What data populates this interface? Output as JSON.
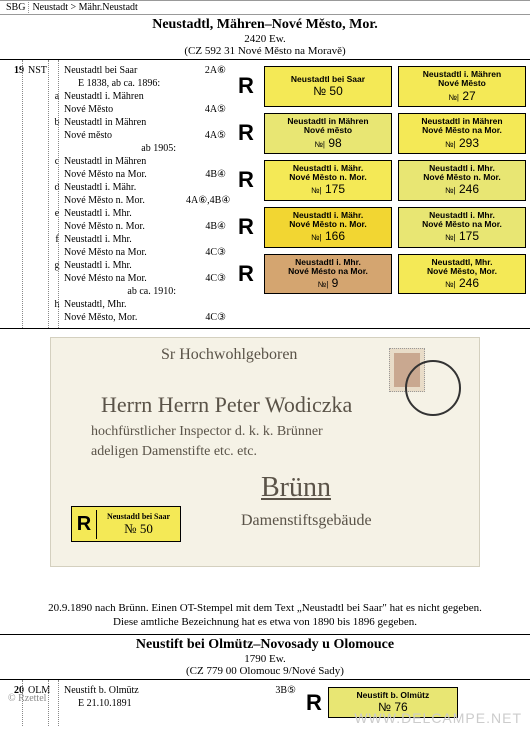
{
  "header": {
    "sbg": "SBG",
    "path": "Neustadt  >  Mähr.Neustadt"
  },
  "section1": {
    "title": "Neustadtl, Mähren–Nové Město, Mor.",
    "pop": "2420 Ew.",
    "loc": "(CZ 592 31 Nové Město na Moravě)",
    "num": "19",
    "prefix": "NST",
    "main": "Neustadtl bei Saar",
    "main_code": "2A⑥",
    "main_sub": "E 1838,   ab ca. 1896:",
    "items": [
      {
        "k": "a",
        "l1": "Neustadtl i. Mähren",
        "l2": "Nové Město",
        "c": "4A⑤"
      },
      {
        "k": "b",
        "l1": "Neustadtl in Mähren",
        "l2": "Nové město",
        "c": "4A⑤"
      },
      {
        "k": "",
        "l1": "",
        "l2": "ab 1905:",
        "c": ""
      },
      {
        "k": "c",
        "l1": "Neustadtl in Mähren",
        "l2": "Nové Město na Mor.",
        "c": "4B④"
      },
      {
        "k": "d",
        "l1": "Neustadtl i. Mähr.",
        "l2": "Nové Město n. Mor.",
        "c": "4A⑥,4B④"
      },
      {
        "k": "e",
        "l1": "Neustadtl i. Mhr.",
        "l2": "Nové Město n. Mor.",
        "c": "4B④"
      },
      {
        "k": "f",
        "l1": "Neustadtl i. Mhr.",
        "l2": "Nové Město na Mor.",
        "c": "4C③"
      },
      {
        "k": "g",
        "l1": "Neustadtl i. Mhr.",
        "l2": "Nové Mésto na Mor.",
        "c": "4C③"
      },
      {
        "k": "",
        "l1": "",
        "l2": "ab ca. 1910:",
        "c": ""
      },
      {
        "k": "h",
        "l1": "Neustadtl, Mhr.",
        "l2": "Nové Město, Mor.",
        "c": "4C③"
      }
    ]
  },
  "labels": [
    {
      "bg": "#f4e956",
      "top": "Neustadtl bei Saar",
      "num": "№ 50",
      "style": "single"
    },
    {
      "bg": "#f4e956",
      "top": "Neustadtl i. Mähren\nNové Mĕsto",
      "num": "27",
      "style": "dbl"
    },
    {
      "bg": "#e8e673",
      "top": "Neustadtl in Mähren\nNové mĕsto",
      "num": "98",
      "style": "dbl"
    },
    {
      "bg": "#f4e956",
      "top": "Neustadtl in Mähren\nNové Mĕsto na Mor.",
      "num": "293",
      "style": "dbl"
    },
    {
      "bg": "#f4e956",
      "top": "Neustadtl i. Mähr.\nNové Mĕsto n. Mor.",
      "num": "175",
      "style": "dbl"
    },
    {
      "bg": "#e8e673",
      "top": "Neustadtl i. Mhr.\nNové Mĕsto n. Mor.",
      "num": "246",
      "style": "dbl"
    },
    {
      "bg": "#f2d632",
      "top": "Neustadtl i. Mähr.\nNové Mĕsto n. Mor.",
      "num": "166",
      "style": "dbl"
    },
    {
      "bg": "#e8e673",
      "top": "Neustadtl i. Mhr.\nNové Mĕsto na Mor.",
      "num": "175",
      "style": "dbl"
    },
    {
      "bg": "#d4a570",
      "top": "Neustadtl i. Mhr.\nNové Mésto na Mor.",
      "num": "9",
      "style": "dbl"
    },
    {
      "bg": "#f4e956",
      "top": "Neustadtl, Mhr.\nNové Mĕsto, Mor.",
      "num": "246",
      "style": "dbl"
    }
  ],
  "cover": {
    "line1": "Sr Hochwohlgeboren",
    "line2": "Herrn Herrn Peter Wodiczka",
    "line3": "hochfürstlicher Inspector d. k. k. Brünner",
    "line4": "adeligen Damenstifte etc. etc.",
    "dest": "Brünn",
    "dest2": "Damenstiftsgebäude",
    "label_top": "Neustadtl bei Saar",
    "label_num": "№ 50",
    "label_bg": "#f4e956"
  },
  "caption": {
    "l1": "20.9.1890 nach Brünn. Einen OT-Stempel mit dem Text „Neustadtl bei Saar\" hat es nicht gegeben.",
    "l2": "Diese amtliche Bezeichnung hat es etwa von 1890 bis 1896 gegeben."
  },
  "section2": {
    "title": "Neustift bei Olmütz–Novosady u Olomouce",
    "pop": "1790 Ew.",
    "loc": "(CZ 779 00 Olomouc 9/Nové Sady)",
    "num": "20",
    "prefix": "OLM",
    "main": "Neustift b. Olmütz",
    "main_code": "3B⑤",
    "main_sub": "E 21.10.1891",
    "label": {
      "bg": "#e8e673",
      "top": "Neustift b. Olmütz",
      "num": "№ 76"
    }
  },
  "footer": {
    "rzettel": "© Rzettel",
    "watermark": "WWW.DELCAMPE.NET"
  }
}
